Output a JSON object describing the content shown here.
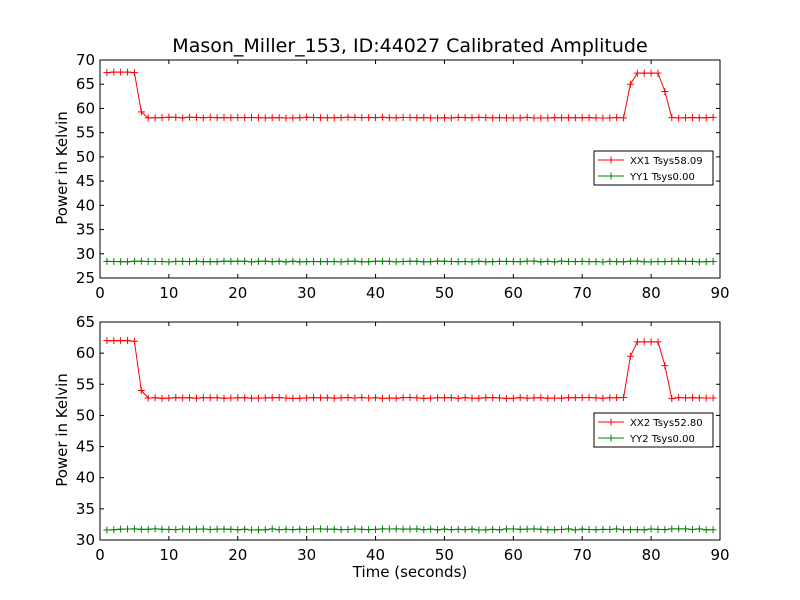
{
  "chart_data": {
    "type": "line",
    "title": "Mason_Miller_153, ID:44027 Calibrated Amplitude",
    "panels": [
      {
        "ylabel": "Power in Kelvin",
        "xlabel": "",
        "xlim": [
          0,
          90
        ],
        "ylim": [
          25,
          70
        ],
        "xticks": [
          "0",
          "10",
          "20",
          "30",
          "40",
          "50",
          "60",
          "70",
          "80",
          "90"
        ],
        "yticks": [
          "25",
          "30",
          "35",
          "40",
          "45",
          "50",
          "55",
          "60",
          "65",
          "70"
        ],
        "legend_position": "center-right",
        "series": [
          {
            "name": "XX1 Tsys58.09",
            "color": "#ff0000",
            "plateau": 58.1,
            "high": [
              67.4,
              67.5,
              67.5,
              67.5,
              67.4,
              67.2
            ],
            "tail": [
              63.5,
              58.1
            ],
            "rise": 65.0,
            "peak": 67.3
          },
          {
            "name": "YY1 Tsys0.00",
            "color": "#008000",
            "level": 28.4
          }
        ]
      },
      {
        "ylabel": "Power in Kelvin",
        "xlabel": "Time (seconds)",
        "xlim": [
          0,
          90
        ],
        "ylim": [
          30,
          65
        ],
        "xticks": [
          "0",
          "10",
          "20",
          "30",
          "40",
          "50",
          "60",
          "70",
          "80",
          "90"
        ],
        "yticks": [
          "30",
          "35",
          "40",
          "45",
          "50",
          "55",
          "60",
          "65"
        ],
        "legend_position": "center-right",
        "series": [
          {
            "name": "XX2 Tsys52.80",
            "color": "#ff0000",
            "plateau": 52.8,
            "high": [
              62.0,
              62.0,
              62.0,
              62.0,
              61.9,
              61.7
            ],
            "tail": [
              58.0,
              52.7
            ],
            "rise": 59.5,
            "peak": 61.8
          },
          {
            "name": "YY2 Tsys0.00",
            "color": "#008000",
            "level": 31.7
          }
        ]
      }
    ]
  }
}
